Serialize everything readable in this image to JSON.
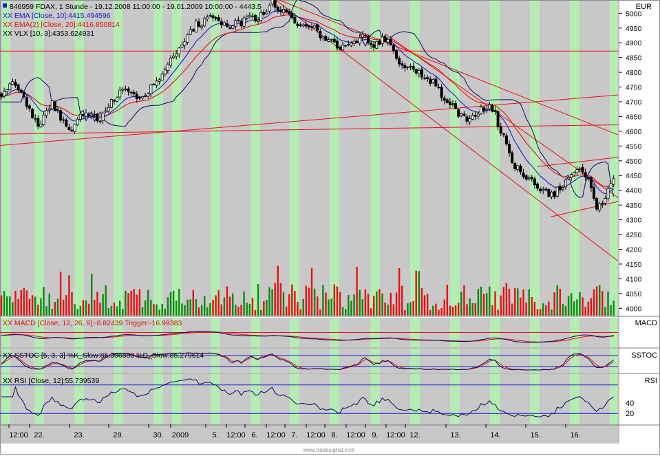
{
  "chart_data": {
    "type": "candlestick",
    "header": {
      "symbol_line": "846959  FDAX, 1 Stunde - 19.12.2008 11:00:00 - 19.01.2009 10:00:00 - 4443.5",
      "ema10": "XX EMA [Close, 10]:4415.494596",
      "ema20": "XX EMA(2) [Close, 20]:4416.850814",
      "vlx": "XX VLX [10, 3]:4353.624931"
    },
    "price_axis": {
      "unit": "EUR",
      "ticks": [
        5000,
        4950,
        4900,
        4850,
        4800,
        4750,
        4700,
        4650,
        4600,
        4550,
        4500,
        4450,
        4400,
        4350,
        4300,
        4250,
        4200,
        4150,
        4100,
        4050,
        4000
      ],
      "range": [
        3975,
        5045
      ]
    },
    "price_path": [
      [
        0,
        4720
      ],
      [
        20,
        4780
      ],
      [
        40,
        4680
      ],
      [
        58,
        4620
      ],
      [
        75,
        4700
      ],
      [
        100,
        4600
      ],
      [
        120,
        4660
      ],
      [
        145,
        4640
      ],
      [
        175,
        4740
      ],
      [
        200,
        4710
      ],
      [
        225,
        4760
      ],
      [
        245,
        4840
      ],
      [
        265,
        4900
      ],
      [
        285,
        4960
      ],
      [
        310,
        4990
      ],
      [
        330,
        4960
      ],
      [
        350,
        4970
      ],
      [
        375,
        4990
      ],
      [
        395,
        5035
      ],
      [
        410,
        5015
      ],
      [
        430,
        4960
      ],
      [
        455,
        4950
      ],
      [
        480,
        4900
      ],
      [
        500,
        4880
      ],
      [
        525,
        4920
      ],
      [
        545,
        4890
      ],
      [
        565,
        4920
      ],
      [
        580,
        4820
      ],
      [
        600,
        4810
      ],
      [
        630,
        4760
      ],
      [
        655,
        4690
      ],
      [
        675,
        4640
      ],
      [
        700,
        4670
      ],
      [
        715,
        4680
      ],
      [
        730,
        4590
      ],
      [
        745,
        4490
      ],
      [
        765,
        4450
      ],
      [
        780,
        4420
      ],
      [
        800,
        4380
      ],
      [
        820,
        4420
      ],
      [
        840,
        4480
      ],
      [
        855,
        4440
      ],
      [
        868,
        4340
      ],
      [
        880,
        4380
      ],
      [
        893,
        4443
      ]
    ],
    "series": [
      {
        "name": "EMA [Close, 10]",
        "color": "#1a1acc"
      },
      {
        "name": "EMA(2) [Close, 20]",
        "color": "#e81010"
      },
      {
        "name": "VLX [10, 3]",
        "color": "#0a0a60"
      }
    ],
    "trend_lines": [
      {
        "from": [
          0,
          4872
        ],
        "to": [
          898,
          4872
        ]
      },
      {
        "from": [
          0,
          4552
        ],
        "to": [
          898,
          4723
        ]
      },
      {
        "from": [
          0,
          4590
        ],
        "to": [
          898,
          4622
        ]
      },
      {
        "from": [
          395,
          5055
        ],
        "to": [
          898,
          4588
        ]
      },
      {
        "from": [
          395,
          5055
        ],
        "to": [
          898,
          4160
        ]
      },
      {
        "from": [
          560,
          4930
        ],
        "to": [
          898,
          4375
        ]
      },
      {
        "from": [
          780,
          4480
        ],
        "to": [
          898,
          4512
        ]
      },
      {
        "from": [
          800,
          4310
        ],
        "to": [
          898,
          4362
        ]
      }
    ],
    "volume": {
      "colors": {
        "up": "#0a8a0a",
        "down": "#e81010"
      },
      "baseline_price": 3975
    },
    "indicators": [
      {
        "id": "macd",
        "label": "XX MACD [Close, 12, 26, 9]:-8.82439 Trigger:-16.99383",
        "axis_label": "MACD"
      },
      {
        "id": "sstoc",
        "label": "XX SSTOC [5, 3, 3] %K_Slow:85.306803 %D_Slow:85.279614",
        "axis_label": "SSTOC"
      },
      {
        "id": "rsi",
        "label": "XX RSI [Close, 12]:55.739539",
        "axis_label": "RSI",
        "ticks": [
          "40",
          "20"
        ],
        "levels": [
          80,
          20
        ]
      }
    ],
    "x_axis": [
      {
        "label": "12:00",
        "x": 27
      },
      {
        "label": "22.",
        "x": 57
      },
      {
        "label": "23.",
        "x": 115
      },
      {
        "label": "29.",
        "x": 172
      },
      {
        "label": "30.",
        "x": 230
      },
      {
        "label": "2009",
        "x": 262
      },
      {
        "label": "5.",
        "x": 313
      },
      {
        "label": "12:00",
        "x": 343
      },
      {
        "label": "6.",
        "x": 370
      },
      {
        "label": "12:00",
        "x": 401
      },
      {
        "label": "7.",
        "x": 428
      },
      {
        "label": "12:00",
        "x": 459
      },
      {
        "label": "8.",
        "x": 486
      },
      {
        "label": "12:00",
        "x": 517
      },
      {
        "label": "9.",
        "x": 545
      },
      {
        "label": "12:00",
        "x": 575
      },
      {
        "label": "12.",
        "x": 603
      },
      {
        "label": "13.",
        "x": 662
      },
      {
        "label": "14.",
        "x": 720
      },
      {
        "label": "15.",
        "x": 778
      },
      {
        "label": "16.",
        "x": 836
      }
    ],
    "watermark": "www.tradesignal.com",
    "session_bands": [
      [
        3,
        15
      ],
      [
        50,
        64
      ],
      [
        108,
        122
      ],
      [
        165,
        179
      ],
      [
        223,
        237
      ],
      [
        250,
        264
      ],
      [
        306,
        320
      ],
      [
        364,
        378
      ],
      [
        421,
        435
      ],
      [
        479,
        493
      ],
      [
        538,
        552
      ],
      [
        596,
        610
      ],
      [
        654,
        668
      ],
      [
        712,
        726
      ],
      [
        770,
        784
      ],
      [
        828,
        842
      ],
      [
        886,
        898
      ]
    ]
  }
}
